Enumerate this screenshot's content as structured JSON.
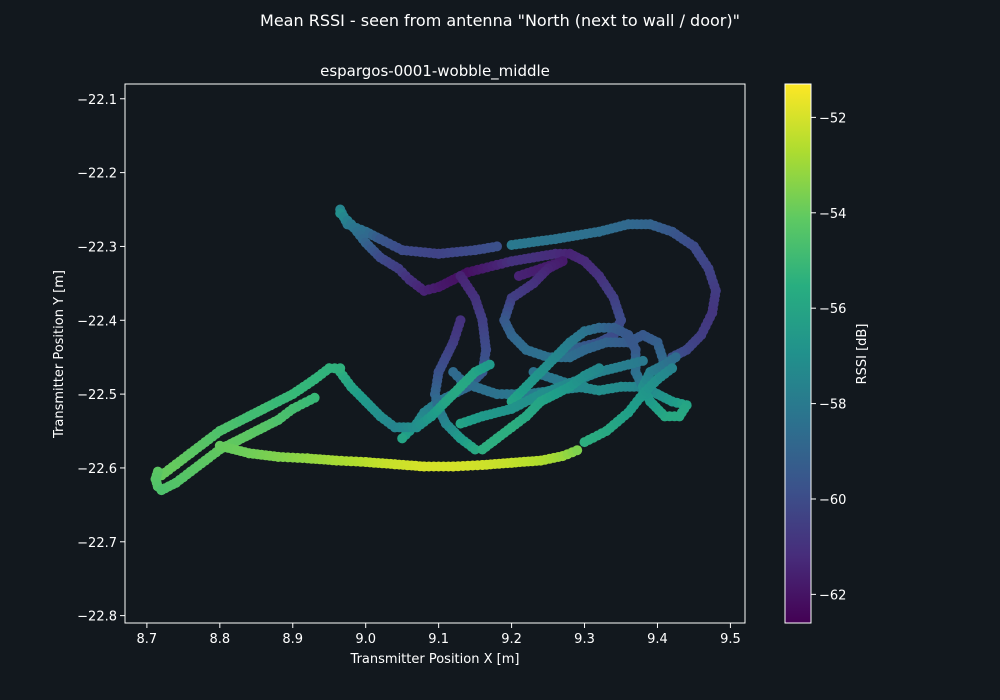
{
  "chart_data": {
    "type": "scatter",
    "suptitle": "Mean RSSI - seen from antenna \"North (next to wall / door)\"",
    "title": "espargos-0001-wobble_middle",
    "xlabel": "Transmitter Position X [m]",
    "ylabel": "Transmitter Position Y [m]",
    "colorbar_label": "RSSI [dB]",
    "xlim": [
      8.67,
      9.52
    ],
    "ylim": [
      -22.81,
      -22.08
    ],
    "xticks": [
      8.7,
      8.8,
      8.9,
      9.0,
      9.1,
      9.2,
      9.3,
      9.4,
      9.5
    ],
    "xtick_labels": [
      "8.7",
      "8.8",
      "8.9",
      "9.0",
      "9.1",
      "9.2",
      "9.3",
      "9.4",
      "9.5"
    ],
    "yticks": [
      -22.1,
      -22.2,
      -22.3,
      -22.4,
      -22.5,
      -22.6,
      -22.7,
      -22.8
    ],
    "ytick_labels": [
      "−22.1",
      "−22.2",
      "−22.3",
      "−22.4",
      "−22.5",
      "−22.6",
      "−22.7",
      "−22.8"
    ],
    "clim": [
      -62.6,
      -51.3
    ],
    "cticks": [
      -52,
      -54,
      -56,
      -58,
      -60,
      -62
    ],
    "ctick_labels": [
      "−52",
      "−54",
      "−56",
      "−58",
      "−60",
      "−62"
    ],
    "colormap": "viridis",
    "grid": false,
    "paths": [
      {
        "points": [
          [
            8.965,
            -22.25
          ],
          [
            8.975,
            -22.27
          ],
          [
            9.0,
            -22.28
          ],
          [
            9.02,
            -22.29
          ],
          [
            9.05,
            -22.305
          ],
          [
            9.1,
            -22.31
          ],
          [
            9.15,
            -22.305
          ],
          [
            9.18,
            -22.3
          ]
        ],
        "rssi": [
          -57.5,
          -58,
          -58.5,
          -59.5,
          -60,
          -60.3,
          -60,
          -59.8
        ]
      },
      {
        "points": [
          [
            9.2,
            -22.298
          ],
          [
            9.26,
            -22.29
          ],
          [
            9.32,
            -22.28
          ],
          [
            9.36,
            -22.27
          ],
          [
            9.39,
            -22.27
          ],
          [
            9.42,
            -22.28
          ],
          [
            9.45,
            -22.3
          ],
          [
            9.47,
            -22.33
          ],
          [
            9.48,
            -22.36
          ],
          [
            9.475,
            -22.39
          ],
          [
            9.46,
            -22.42
          ],
          [
            9.44,
            -22.44
          ],
          [
            9.42,
            -22.45
          ]
        ],
        "rssi": [
          -58,
          -58.3,
          -58.5,
          -58.8,
          -59,
          -59.5,
          -60,
          -60.3,
          -60.6,
          -60.8,
          -60.6,
          -60.2,
          -59.8
        ]
      },
      {
        "points": [
          [
            8.965,
            -22.255
          ],
          [
            8.98,
            -22.27
          ],
          [
            9.0,
            -22.295
          ],
          [
            9.02,
            -22.315
          ],
          [
            9.045,
            -22.33
          ],
          [
            9.06,
            -22.345
          ],
          [
            9.08,
            -22.36
          ],
          [
            9.1,
            -22.355
          ],
          [
            9.12,
            -22.345
          ],
          [
            9.14,
            -22.335
          ],
          [
            9.16,
            -22.33
          ],
          [
            9.18,
            -22.325
          ],
          [
            9.2,
            -22.32
          ],
          [
            9.23,
            -22.315
          ],
          [
            9.26,
            -22.31
          ],
          [
            9.28,
            -22.31
          ]
        ],
        "rssi": [
          -57,
          -58,
          -59,
          -60,
          -60.5,
          -61,
          -61.5,
          -61.8,
          -62,
          -62.1,
          -61.8,
          -61.5,
          -61,
          -61,
          -61.2,
          -61.5
        ]
      },
      {
        "points": [
          [
            9.28,
            -22.31
          ],
          [
            9.3,
            -22.32
          ],
          [
            9.32,
            -22.34
          ],
          [
            9.34,
            -22.37
          ],
          [
            9.35,
            -22.4
          ],
          [
            9.34,
            -22.42
          ],
          [
            9.32,
            -22.43
          ],
          [
            9.3,
            -22.435
          ],
          [
            9.28,
            -22.44
          ]
        ],
        "rssi": [
          -61.5,
          -61.3,
          -61,
          -60.5,
          -60,
          -60,
          -59.8,
          -59.5,
          -59
        ]
      },
      {
        "points": [
          [
            9.13,
            -22.34
          ],
          [
            9.15,
            -22.37
          ],
          [
            9.16,
            -22.4
          ],
          [
            9.165,
            -22.44
          ],
          [
            9.16,
            -22.47
          ],
          [
            9.14,
            -22.49
          ],
          [
            9.12,
            -22.5
          ],
          [
            9.1,
            -22.51
          ],
          [
            9.08,
            -22.525
          ],
          [
            9.07,
            -22.54
          ],
          [
            9.06,
            -22.55
          ],
          [
            9.05,
            -22.56
          ]
        ],
        "rssi": [
          -61.5,
          -61,
          -60.5,
          -60,
          -59.5,
          -59,
          -58.5,
          -58,
          -57.5,
          -57,
          -56.5,
          -56
        ]
      },
      {
        "points": [
          [
            9.13,
            -22.4
          ],
          [
            9.12,
            -22.43
          ],
          [
            9.11,
            -22.45
          ],
          [
            9.1,
            -22.47
          ],
          [
            9.095,
            -22.5
          ],
          [
            9.1,
            -22.52
          ],
          [
            9.11,
            -22.54
          ],
          [
            9.13,
            -22.56
          ],
          [
            9.15,
            -22.575
          ]
        ],
        "rssi": [
          -61,
          -60.6,
          -60.2,
          -59.8,
          -59,
          -58.3,
          -57.5,
          -56.5,
          -55.8
        ]
      },
      {
        "points": [
          [
            9.21,
            -22.34
          ],
          [
            9.24,
            -22.33
          ],
          [
            9.27,
            -22.32
          ],
          [
            9.25,
            -22.33
          ],
          [
            9.23,
            -22.35
          ],
          [
            9.2,
            -22.37
          ],
          [
            9.19,
            -22.4
          ],
          [
            9.2,
            -22.42
          ],
          [
            9.22,
            -22.44
          ],
          [
            9.25,
            -22.45
          ],
          [
            9.28,
            -22.45
          ],
          [
            9.3,
            -22.44
          ],
          [
            9.33,
            -22.43
          ],
          [
            9.36,
            -22.43
          ],
          [
            9.38,
            -22.42
          ],
          [
            9.4,
            -22.43
          ],
          [
            9.41,
            -22.46
          ],
          [
            9.4,
            -22.48
          ],
          [
            9.38,
            -22.49
          ],
          [
            9.35,
            -22.49
          ],
          [
            9.32,
            -22.495
          ],
          [
            9.29,
            -22.49
          ],
          [
            9.26,
            -22.48
          ],
          [
            9.23,
            -22.47
          ]
        ],
        "rssi": [
          -61.5,
          -61.7,
          -61.8,
          -61.5,
          -61,
          -60.5,
          -59.5,
          -59,
          -58.6,
          -58.4,
          -58.5,
          -58.8,
          -59,
          -59.3,
          -59.5,
          -59.2,
          -58.7,
          -58.2,
          -57.5,
          -57.2,
          -57,
          -57.5,
          -58,
          -58.3
        ]
      },
      {
        "points": [
          [
            9.3,
            -22.49
          ],
          [
            9.26,
            -22.495
          ],
          [
            9.22,
            -22.5
          ],
          [
            9.18,
            -22.5
          ],
          [
            9.15,
            -22.49
          ],
          [
            9.13,
            -22.48
          ],
          [
            9.12,
            -22.47
          ]
        ],
        "rssi": [
          -57.2,
          -57.5,
          -58,
          -58.3,
          -58.5,
          -58.6,
          -58.7
        ]
      },
      {
        "points": [
          [
            9.2,
            -22.51
          ],
          [
            9.22,
            -22.49
          ],
          [
            9.24,
            -22.47
          ],
          [
            9.26,
            -22.45
          ],
          [
            9.28,
            -22.43
          ],
          [
            9.3,
            -22.415
          ],
          [
            9.32,
            -22.41
          ],
          [
            9.34,
            -22.41
          ],
          [
            9.36,
            -22.42
          ],
          [
            9.37,
            -22.44
          ],
          [
            9.37,
            -22.47
          ],
          [
            9.38,
            -22.49
          ],
          [
            9.4,
            -22.5
          ],
          [
            9.42,
            -22.51
          ],
          [
            9.44,
            -22.515
          ]
        ],
        "rssi": [
          -56,
          -56.4,
          -56.8,
          -57.3,
          -57.8,
          -58.2,
          -58.8,
          -59.2,
          -59.5,
          -59.5,
          -58.5,
          -58,
          -57,
          -56.5,
          -56
        ]
      },
      {
        "points": [
          [
            9.44,
            -22.515
          ],
          [
            9.43,
            -22.53
          ],
          [
            9.41,
            -22.53
          ],
          [
            9.39,
            -22.51
          ],
          [
            9.38,
            -22.49
          ],
          [
            9.39,
            -22.47
          ],
          [
            9.41,
            -22.46
          ],
          [
            9.425,
            -22.45
          ]
        ],
        "rssi": [
          -56,
          -55.8,
          -55.8,
          -56.4,
          -57,
          -57.6,
          -58.2,
          -58.6
        ]
      },
      {
        "points": [
          [
            9.13,
            -22.54
          ],
          [
            9.16,
            -22.53
          ],
          [
            9.2,
            -22.52
          ],
          [
            9.24,
            -22.5
          ],
          [
            9.28,
            -22.485
          ],
          [
            9.32,
            -22.47
          ],
          [
            9.36,
            -22.46
          ],
          [
            9.38,
            -22.455
          ]
        ],
        "rssi": [
          -56,
          -56.5,
          -56.8,
          -57,
          -57.3,
          -57.5,
          -57.8,
          -58
        ]
      },
      {
        "points": [
          [
            9.16,
            -22.575
          ],
          [
            9.18,
            -22.56
          ],
          [
            9.2,
            -22.545
          ],
          [
            9.22,
            -22.53
          ],
          [
            9.24,
            -22.51
          ],
          [
            9.26,
            -22.5
          ],
          [
            9.28,
            -22.49
          ],
          [
            9.3,
            -22.475
          ],
          [
            9.32,
            -22.465
          ]
        ],
        "rssi": [
          -55.5,
          -55.5,
          -55.5,
          -55.8,
          -56,
          -56.3,
          -56.6,
          -57,
          -57.3
        ]
      },
      {
        "points": [
          [
            9.3,
            -22.565
          ],
          [
            9.33,
            -22.55
          ],
          [
            9.36,
            -22.525
          ],
          [
            9.38,
            -22.5
          ],
          [
            9.4,
            -22.48
          ],
          [
            9.42,
            -22.465
          ]
        ],
        "rssi": [
          -55.5,
          -55.8,
          -56.2,
          -56.6,
          -57,
          -57.5
        ]
      },
      {
        "points": [
          [
            8.965,
            -22.47
          ],
          [
            8.98,
            -22.49
          ],
          [
            9.0,
            -22.51
          ],
          [
            9.02,
            -22.53
          ],
          [
            9.04,
            -22.545
          ],
          [
            9.07,
            -22.545
          ],
          [
            9.09,
            -22.53
          ],
          [
            9.11,
            -22.51
          ],
          [
            9.13,
            -22.49
          ],
          [
            9.15,
            -22.47
          ],
          [
            9.17,
            -22.46
          ]
        ],
        "rssi": [
          -55.5,
          -56,
          -56.5,
          -57,
          -57.5,
          -57,
          -56.5,
          -56,
          -55.8,
          -56,
          -56.5
        ]
      },
      {
        "points": [
          [
            8.72,
            -22.61
          ],
          [
            8.74,
            -22.595
          ],
          [
            8.76,
            -22.58
          ],
          [
            8.78,
            -22.565
          ],
          [
            8.8,
            -22.55
          ],
          [
            8.82,
            -22.54
          ],
          [
            8.84,
            -22.53
          ],
          [
            8.86,
            -22.52
          ],
          [
            8.88,
            -22.51
          ],
          [
            8.9,
            -22.5
          ],
          [
            8.93,
            -22.48
          ],
          [
            8.95,
            -22.465
          ],
          [
            8.965,
            -22.465
          ]
        ],
        "rssi": [
          -54,
          -54,
          -54.2,
          -54.3,
          -54.5,
          -54.6,
          -54.8,
          -54.8,
          -55,
          -55,
          -55.2,
          -55.3,
          -55.4
        ]
      },
      {
        "points": [
          [
            8.72,
            -22.63
          ],
          [
            8.74,
            -22.62
          ],
          [
            8.76,
            -22.605
          ],
          [
            8.78,
            -22.59
          ],
          [
            8.8,
            -22.575
          ],
          [
            8.82,
            -22.565
          ],
          [
            8.84,
            -22.555
          ],
          [
            8.86,
            -22.545
          ],
          [
            8.88,
            -22.535
          ],
          [
            8.9,
            -22.52
          ],
          [
            8.93,
            -22.505
          ]
        ],
        "rssi": [
          -54.5,
          -54.4,
          -54.3,
          -54.2,
          -54.1,
          -54.1,
          -54.2,
          -54.3,
          -54.5,
          -54.7,
          -55
        ]
      },
      {
        "points": [
          [
            8.715,
            -22.605
          ],
          [
            8.712,
            -22.615
          ],
          [
            8.715,
            -22.625
          ],
          [
            8.72,
            -22.63
          ]
        ],
        "rssi": [
          -54.2,
          -54.3,
          -54.4,
          -54.5
        ]
      },
      {
        "points": [
          [
            8.8,
            -22.57
          ],
          [
            8.84,
            -22.58
          ],
          [
            8.88,
            -22.585
          ],
          [
            8.92,
            -22.587
          ],
          [
            8.96,
            -22.59
          ],
          [
            9.0,
            -22.592
          ],
          [
            9.04,
            -22.595
          ],
          [
            9.08,
            -22.598
          ],
          [
            9.12,
            -22.598
          ],
          [
            9.16,
            -22.596
          ],
          [
            9.2,
            -22.593
          ],
          [
            9.24,
            -22.59
          ],
          [
            9.27,
            -22.584
          ],
          [
            9.29,
            -22.576
          ]
        ],
        "rssi": [
          -54,
          -53.8,
          -53.5,
          -53.2,
          -52.8,
          -52.5,
          -52.2,
          -52,
          -52,
          -52.1,
          -52.3,
          -52.6,
          -53,
          -53.5
        ]
      }
    ]
  }
}
